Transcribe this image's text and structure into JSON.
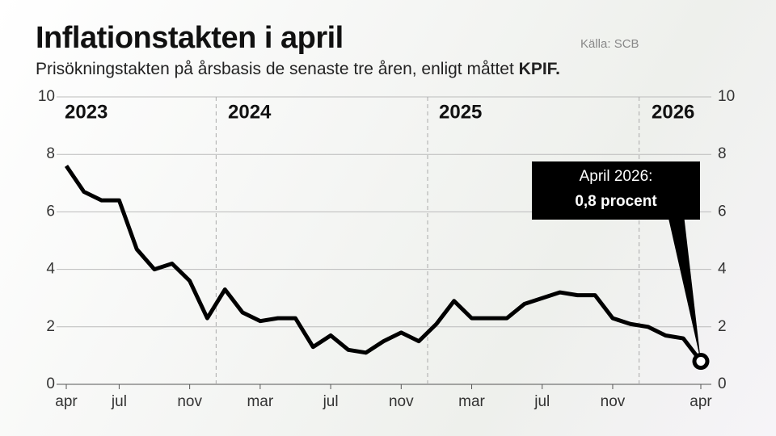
{
  "chart_data": {
    "type": "line",
    "title": "Inflationstakten i april",
    "subtitle": "Prisökningstakten på årsbasis de senaste tre åren, enligt måttet",
    "subtitle_emphasis": "KPIF.",
    "source": "Källa: SCB",
    "categories": [
      "apr",
      null,
      null,
      "jul",
      null,
      null,
      null,
      "nov",
      null,
      null,
      null,
      "mar",
      null,
      null,
      null,
      "jul",
      null,
      null,
      null,
      "nov",
      null,
      null,
      null,
      "mar",
      null,
      null,
      null,
      "jul",
      null,
      null,
      null,
      "nov",
      null,
      null,
      null,
      null,
      "apr"
    ],
    "year_labels": [
      "2023",
      "2024",
      "2025",
      "2026"
    ],
    "series": [
      {
        "name": "KPIF",
        "color": "#000000",
        "values": [
          7.6,
          6.7,
          6.4,
          6.4,
          4.7,
          4.0,
          4.2,
          3.6,
          2.3,
          3.3,
          2.5,
          2.2,
          2.3,
          2.3,
          1.3,
          1.7,
          1.2,
          1.1,
          1.5,
          1.8,
          1.5,
          2.1,
          2.9,
          2.3,
          2.3,
          2.3,
          2.8,
          3.0,
          3.2,
          3.1,
          3.1,
          2.3,
          2.1,
          2.0,
          1.7,
          1.6,
          0.8
        ]
      }
    ],
    "annotation": {
      "title": "April 2026:",
      "label": "0,8 procent"
    },
    "ylim": [
      0,
      10
    ],
    "yticks": [
      0,
      2,
      4,
      6,
      8,
      10
    ],
    "y2lim": [
      0,
      10
    ],
    "y2ticks": [
      0,
      2,
      4,
      6,
      8,
      10
    ],
    "grid": true
  }
}
